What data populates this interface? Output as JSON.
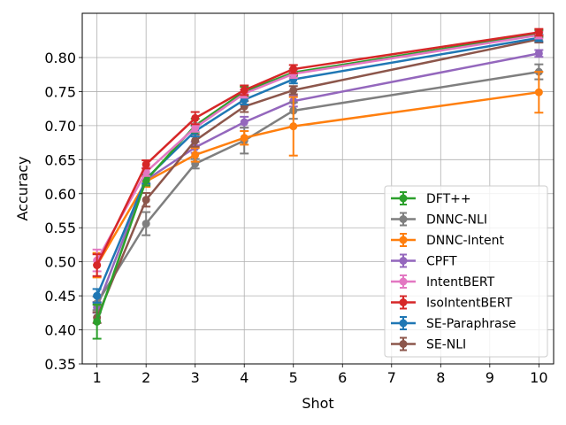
{
  "chart_data": {
    "type": "line",
    "title": "",
    "xlabel": "Shot",
    "ylabel": "Accuracy",
    "x": [
      1,
      2,
      3,
      4,
      5,
      10
    ],
    "xticks": [
      1,
      2,
      3,
      4,
      5,
      6,
      7,
      8,
      9,
      10
    ],
    "yticks": [
      0.35,
      0.4,
      0.45,
      0.5,
      0.55,
      0.6,
      0.65,
      0.7,
      0.75,
      0.8
    ],
    "ytick_labels": [
      "0.35",
      "0.40",
      "0.45",
      "0.50",
      "0.55",
      "0.60",
      "0.65",
      "0.70",
      "0.75",
      "0.80"
    ],
    "xlim": [
      0.7,
      10.3
    ],
    "ylim": [
      0.35,
      0.865
    ],
    "grid": true,
    "legend_position": "lower-right",
    "series": [
      {
        "name": "DFT++",
        "color": "#2ca02c",
        "values": [
          0.412,
          0.62,
          0.7,
          0.75,
          0.778,
          0.835
        ],
        "errors": [
          0.025,
          0.008,
          0.01,
          0.007,
          0.005,
          0.005
        ]
      },
      {
        "name": "DNNC-NLI",
        "color": "#7f7f7f",
        "values": [
          0.439,
          0.556,
          0.644,
          0.678,
          0.722,
          0.779
        ],
        "errors": [
          0.01,
          0.017,
          0.007,
          0.019,
          0.012,
          0.011
        ]
      },
      {
        "name": "DNNC-Intent",
        "color": "#ff7f0e",
        "values": [
          0.495,
          0.618,
          0.657,
          0.682,
          0.699,
          0.749
        ],
        "errors": [
          0.018,
          0.008,
          0.01,
          0.01,
          0.043,
          0.03
        ]
      },
      {
        "name": "CPFT",
        "color": "#9467bd",
        "values": [
          0.433,
          0.62,
          0.668,
          0.705,
          0.736,
          0.806
        ],
        "errors": [
          0.008,
          0.006,
          0.008,
          0.008,
          0.008,
          0.005
        ]
      },
      {
        "name": "IntentBERT",
        "color": "#e377c2",
        "values": [
          0.502,
          0.632,
          0.697,
          0.747,
          0.776,
          0.833
        ],
        "errors": [
          0.016,
          0.006,
          0.006,
          0.006,
          0.006,
          0.005
        ]
      },
      {
        "name": "IsoIntentBERT",
        "color": "#d62728",
        "values": [
          0.495,
          0.643,
          0.711,
          0.752,
          0.783,
          0.837
        ],
        "errors": [
          0.016,
          0.006,
          0.009,
          0.007,
          0.006,
          0.005
        ]
      },
      {
        "name": "SE-Paraphrase",
        "color": "#1f77b4",
        "values": [
          0.45,
          0.622,
          0.692,
          0.738,
          0.768,
          0.829
        ],
        "errors": [
          0.01,
          0.007,
          0.008,
          0.007,
          0.006,
          0.005
        ]
      },
      {
        "name": "SE-NLI",
        "color": "#8c564b",
        "values": [
          0.418,
          0.591,
          0.678,
          0.728,
          0.752,
          0.827
        ],
        "errors": [
          0.008,
          0.01,
          0.009,
          0.008,
          0.006,
          0.005
        ]
      }
    ],
    "draw_order": [
      "CPFT",
      "DNNC-NLI",
      "DNNC-Intent",
      "SE-NLI",
      "SE-Paraphrase",
      "DFT++",
      "IntentBERT",
      "IsoIntentBERT"
    ]
  }
}
